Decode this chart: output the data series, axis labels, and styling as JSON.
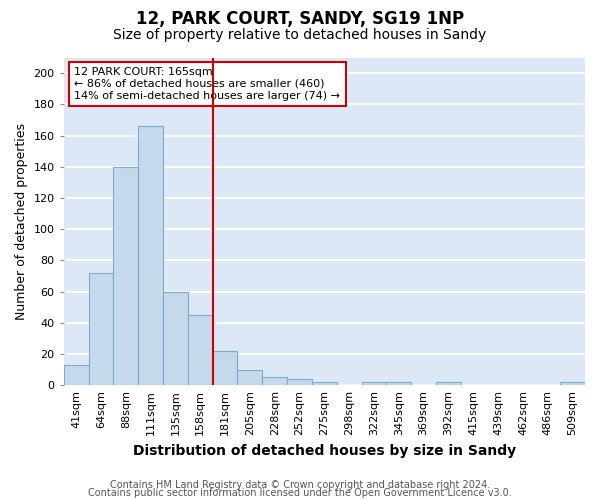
{
  "title1": "12, PARK COURT, SANDY, SG19 1NP",
  "title2": "Size of property relative to detached houses in Sandy",
  "xlabel": "Distribution of detached houses by size in Sandy",
  "ylabel": "Number of detached properties",
  "categories": [
    "41sqm",
    "64sqm",
    "88sqm",
    "111sqm",
    "135sqm",
    "158sqm",
    "181sqm",
    "205sqm",
    "228sqm",
    "252sqm",
    "275sqm",
    "298sqm",
    "322sqm",
    "345sqm",
    "369sqm",
    "392sqm",
    "415sqm",
    "439sqm",
    "462sqm",
    "486sqm",
    "509sqm"
  ],
  "values": [
    13,
    72,
    140,
    166,
    60,
    45,
    22,
    10,
    5,
    4,
    2,
    0,
    2,
    2,
    0,
    2,
    0,
    0,
    0,
    0,
    2
  ],
  "bar_color": "#c5d8ec",
  "bar_edge_color": "#7aaed0",
  "vline_color": "#cc0000",
  "annotation_box_text": "12 PARK COURT: 165sqm\n← 86% of detached houses are smaller (460)\n14% of semi-detached houses are larger (74) →",
  "annotation_box_color": "#cc0000",
  "ylim": [
    0,
    210
  ],
  "yticks": [
    0,
    20,
    40,
    60,
    80,
    100,
    120,
    140,
    160,
    180,
    200
  ],
  "fig_background": "#ffffff",
  "plot_background": "#dce8f5",
  "grid_color": "#ffffff",
  "footer1": "Contains HM Land Registry data © Crown copyright and database right 2024.",
  "footer2": "Contains public sector information licensed under the Open Government Licence v3.0.",
  "title1_fontsize": 12,
  "title2_fontsize": 10,
  "xlabel_fontsize": 10,
  "ylabel_fontsize": 9,
  "tick_fontsize": 8,
  "annotation_fontsize": 8,
  "footer_fontsize": 7
}
